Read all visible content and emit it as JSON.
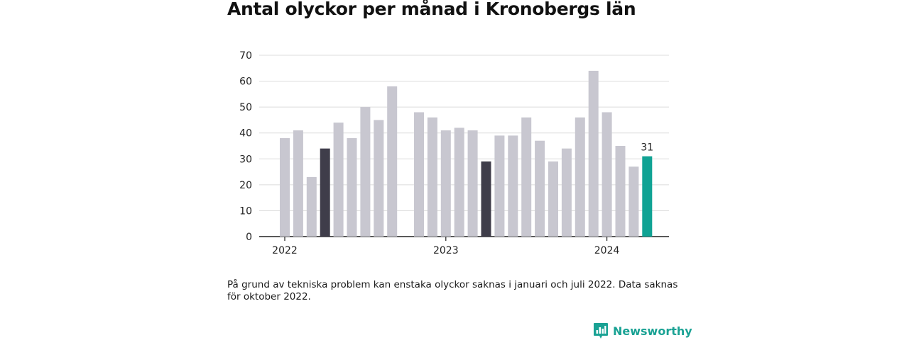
{
  "title": "Antal olyckor per månad i Kronobergs län",
  "note": "På grund av tekniska problem kan enstaka olyckor saknas i januari och juli 2022. Data saknas för oktober 2022.",
  "brand": {
    "name": "Newsworthy",
    "icon": "bar-chart-logo-icon"
  },
  "colors": {
    "bar": "#c8c7d0",
    "highlight_past": "#3f3d4a",
    "highlight_current": "#10a394",
    "grid": "#dcdcdc",
    "axis": "#222222"
  },
  "chart_data": {
    "type": "bar",
    "title": "Antal olyckor per månad i Kronobergs län",
    "xlabel": "",
    "ylabel": "",
    "ylim": [
      0,
      70
    ],
    "yticks": [
      0,
      10,
      20,
      30,
      40,
      50,
      60,
      70
    ],
    "xticks": [
      {
        "label": "2022",
        "month": "2022-01"
      },
      {
        "label": "2023",
        "month": "2023-01"
      },
      {
        "label": "2024",
        "month": "2024-01"
      }
    ],
    "grid": true,
    "months": [
      "2022-01",
      "2022-02",
      "2022-03",
      "2022-04",
      "2022-05",
      "2022-06",
      "2022-07",
      "2022-08",
      "2022-09",
      "2022-10",
      "2022-11",
      "2022-12",
      "2023-01",
      "2023-02",
      "2023-03",
      "2023-04",
      "2023-05",
      "2023-06",
      "2023-07",
      "2023-08",
      "2023-09",
      "2023-10",
      "2023-11",
      "2023-12",
      "2024-01",
      "2024-02",
      "2024-03",
      "2024-04"
    ],
    "values": [
      38,
      41,
      23,
      34,
      44,
      38,
      50,
      45,
      58,
      null,
      48,
      46,
      41,
      42,
      41,
      29,
      39,
      39,
      46,
      37,
      29,
      34,
      46,
      64,
      48,
      35,
      27,
      31
    ],
    "highlight": [
      {
        "month": "2022-04",
        "role": "past"
      },
      {
        "month": "2023-04",
        "role": "past"
      },
      {
        "month": "2024-04",
        "role": "current"
      }
    ],
    "annotations": [
      {
        "month": "2024-04",
        "text": "31"
      }
    ]
  }
}
